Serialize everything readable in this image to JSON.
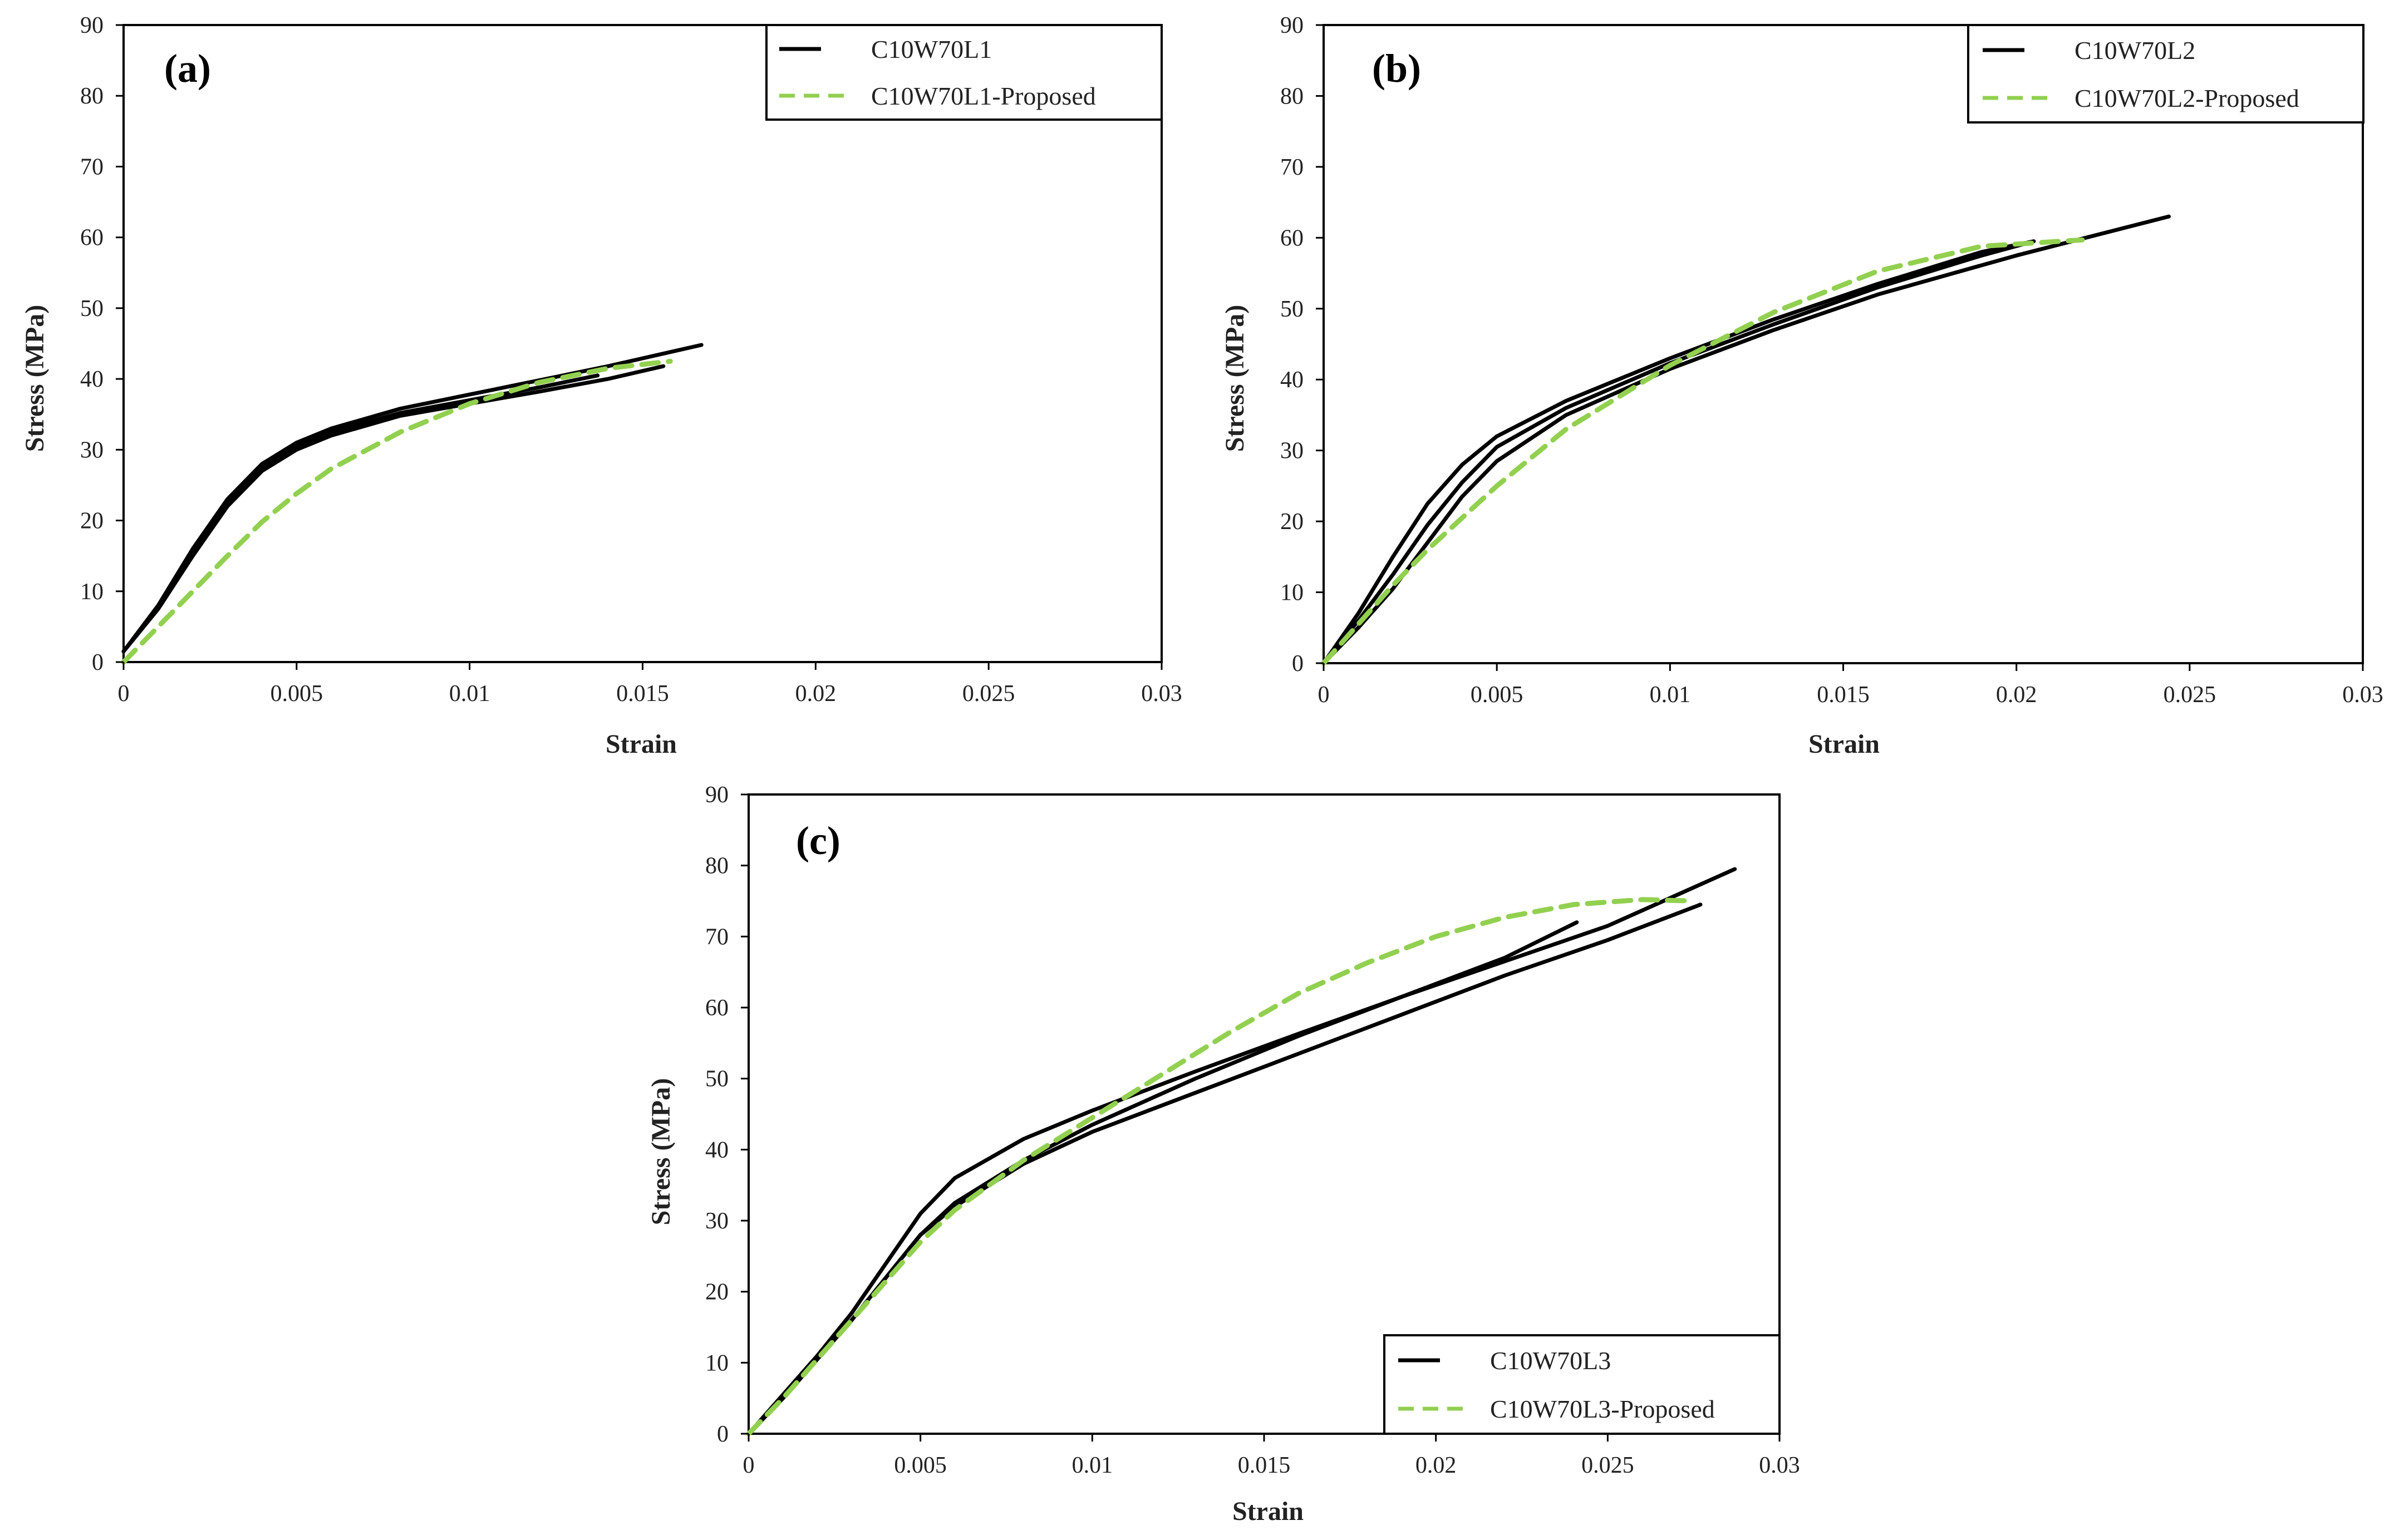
{
  "chart_data": [
    {
      "type": "line",
      "panel_label": "(a)",
      "xlabel": "Strain",
      "ylabel": "Stress (MPa)",
      "xlim": [
        0,
        0.03
      ],
      "ylim": [
        0,
        90
      ],
      "x_ticks": [
        "0",
        "0.005",
        "0.01",
        "0.015",
        "0.02",
        "0.025",
        "0.03"
      ],
      "y_ticks": [
        "0",
        "10",
        "20",
        "30",
        "40",
        "50",
        "60",
        "70",
        "80",
        "90"
      ],
      "legend_position": "top-right",
      "legend": [
        {
          "label": "C10W70L1",
          "style": "solid",
          "color": "#000000"
        },
        {
          "label": "C10W70L1-Proposed",
          "style": "dashed",
          "color": "#92D050"
        }
      ],
      "series": [
        {
          "name": "C10W70L1 specimen 1",
          "style": "solid",
          "x": [
            0,
            0.001,
            0.002,
            0.003,
            0.004,
            0.005,
            0.006,
            0.008,
            0.01,
            0.012,
            0.014,
            0.0167
          ],
          "y": [
            1.5,
            8,
            16,
            23,
            28,
            31,
            33,
            35.8,
            37.8,
            39.8,
            41.8,
            44.8
          ]
        },
        {
          "name": "C10W70L1 specimen 2",
          "style": "solid",
          "x": [
            0,
            0.001,
            0.002,
            0.003,
            0.004,
            0.005,
            0.006,
            0.008,
            0.01,
            0.012,
            0.014,
            0.0156
          ],
          "y": [
            1.5,
            7.5,
            15,
            22,
            27,
            30,
            32,
            34.8,
            36.5,
            38.2,
            40,
            41.8
          ]
        },
        {
          "name": "C10W70L1 specimen 3",
          "style": "solid",
          "x": [
            0,
            0.001,
            0.002,
            0.003,
            0.004,
            0.005,
            0.006,
            0.008,
            0.01,
            0.012,
            0.0137
          ],
          "y": [
            1.5,
            7.8,
            15.5,
            22.5,
            27.5,
            30.5,
            32.5,
            35.2,
            37,
            38.8,
            40.5
          ]
        },
        {
          "name": "C10W70L1-Proposed",
          "style": "dashed",
          "x": [
            0,
            0.001,
            0.002,
            0.003,
            0.004,
            0.005,
            0.006,
            0.008,
            0.01,
            0.012,
            0.014,
            0.0158
          ],
          "y": [
            0,
            5,
            10,
            15,
            19.8,
            23.8,
            27.3,
            32.5,
            36.5,
            39.5,
            41.5,
            42.5
          ]
        }
      ]
    },
    {
      "type": "line",
      "panel_label": "(b)",
      "xlabel": "Strain",
      "ylabel": "Stress (MPa)",
      "xlim": [
        0,
        0.03
      ],
      "ylim": [
        0,
        90
      ],
      "x_ticks": [
        "0",
        "0.005",
        "0.01",
        "0.015",
        "0.02",
        "0.025",
        "0.03"
      ],
      "y_ticks": [
        "0",
        "10",
        "20",
        "30",
        "40",
        "50",
        "60",
        "70",
        "80",
        "90"
      ],
      "legend_position": "top-right",
      "legend": [
        {
          "label": "C10W70L2",
          "style": "solid",
          "color": "#000000"
        },
        {
          "label": "C10W70L2-Proposed",
          "style": "dashed",
          "color": "#92D050"
        }
      ],
      "series": [
        {
          "name": "C10W70L2 specimen 1",
          "style": "solid",
          "x": [
            0,
            0.001,
            0.002,
            0.003,
            0.004,
            0.005,
            0.007,
            0.01,
            0.013,
            0.016,
            0.019,
            0.0205
          ],
          "y": [
            0,
            7,
            15,
            22.5,
            28,
            32,
            37,
            43,
            48.5,
            53.5,
            58,
            59.5
          ]
        },
        {
          "name": "C10W70L2 specimen 2",
          "style": "solid",
          "x": [
            0,
            0.001,
            0.002,
            0.003,
            0.004,
            0.005,
            0.007,
            0.01,
            0.013,
            0.016,
            0.019,
            0.0205
          ],
          "y": [
            0,
            6,
            12.5,
            19.5,
            25.5,
            30.5,
            36,
            42.3,
            47.8,
            53,
            57.5,
            59.5
          ]
        },
        {
          "name": "C10W70L2 specimen 3",
          "style": "solid",
          "x": [
            0,
            0.001,
            0.002,
            0.003,
            0.004,
            0.005,
            0.007,
            0.01,
            0.013,
            0.016,
            0.02,
            0.0244
          ],
          "y": [
            0,
            5,
            10.5,
            17,
            23.5,
            28.5,
            35,
            41.5,
            47,
            52,
            57.5,
            63
          ]
        },
        {
          "name": "C10W70L2-Proposed",
          "style": "dashed",
          "x": [
            0,
            0.001,
            0.002,
            0.003,
            0.004,
            0.005,
            0.007,
            0.01,
            0.013,
            0.016,
            0.019,
            0.0219
          ],
          "y": [
            0,
            5.5,
            11,
            16,
            20.5,
            25,
            33,
            42,
            49.5,
            55.3,
            58.8,
            59.7
          ]
        }
      ]
    },
    {
      "type": "line",
      "panel_label": "(c)",
      "xlabel": "Strain",
      "ylabel": "Stress (MPa)",
      "xlim": [
        0,
        0.03
      ],
      "ylim": [
        0,
        90
      ],
      "x_ticks": [
        "0",
        "0.005",
        "0.01",
        "0.015",
        "0.02",
        "0.025",
        "0.03"
      ],
      "y_ticks": [
        "0",
        "10",
        "20",
        "30",
        "40",
        "50",
        "60",
        "70",
        "80",
        "90"
      ],
      "legend_position": "bottom-right",
      "legend": [
        {
          "label": "C10W70L3",
          "style": "solid",
          "color": "#000000"
        },
        {
          "label": "C10W70L3-Proposed",
          "style": "dashed",
          "color": "#92D050"
        }
      ],
      "series": [
        {
          "name": "C10W70L3 specimen 1",
          "style": "solid",
          "x": [
            0,
            0.001,
            0.002,
            0.003,
            0.004,
            0.005,
            0.006,
            0.008,
            0.01,
            0.013,
            0.016,
            0.019,
            0.022,
            0.025,
            0.0287
          ],
          "y": [
            0,
            5.5,
            11,
            17,
            24,
            31,
            36,
            41.5,
            45.5,
            51,
            56.3,
            61.5,
            66.5,
            71.5,
            79.5
          ]
        },
        {
          "name": "C10W70L3 specimen 2",
          "style": "solid",
          "x": [
            0,
            0.001,
            0.002,
            0.003,
            0.004,
            0.005,
            0.006,
            0.008,
            0.01,
            0.013,
            0.016,
            0.019,
            0.022,
            0.0241
          ],
          "y": [
            0,
            5,
            10.5,
            16,
            22,
            28,
            32.5,
            38.5,
            43.5,
            50,
            56,
            61.5,
            67,
            72
          ]
        },
        {
          "name": "C10W70L3 specimen 3",
          "style": "solid",
          "x": [
            0,
            0.001,
            0.002,
            0.003,
            0.004,
            0.005,
            0.006,
            0.008,
            0.01,
            0.013,
            0.016,
            0.019,
            0.022,
            0.025,
            0.0277
          ],
          "y": [
            0,
            5,
            10.5,
            16,
            22,
            28,
            32,
            38,
            42.5,
            48,
            53.5,
            59,
            64.5,
            69.5,
            74.5
          ]
        },
        {
          "name": "C10W70L3-Proposed",
          "style": "dashed",
          "x": [
            0,
            0.001,
            0.002,
            0.003,
            0.004,
            0.005,
            0.006,
            0.008,
            0.01,
            0.012,
            0.014,
            0.016,
            0.018,
            0.02,
            0.022,
            0.024,
            0.026,
            0.0275
          ],
          "y": [
            0,
            5,
            10.5,
            16,
            21.5,
            27,
            31.5,
            38.5,
            44.5,
            50.5,
            56.5,
            62,
            66.3,
            70,
            72.7,
            74.5,
            75.2,
            75
          ]
        }
      ]
    }
  ]
}
